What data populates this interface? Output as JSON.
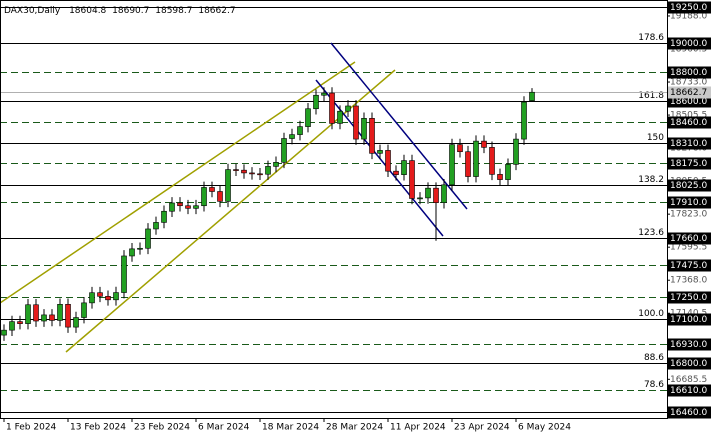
{
  "chart_data": {
    "type": "candlestick",
    "title": "DAX30,Daily",
    "up_color": "#22a022",
    "down_color": "#e41b1b",
    "categories": [
      "1 Feb 2024",
      null,
      null,
      null,
      null,
      null,
      null,
      null,
      "13 Feb 2024",
      null,
      null,
      null,
      null,
      null,
      null,
      null,
      "23 Feb 2024",
      null,
      null,
      null,
      null,
      null,
      null,
      null,
      "6 Mar 2024",
      null,
      null,
      null,
      null,
      null,
      null,
      null,
      "18 Mar 2024",
      null,
      null,
      null,
      null,
      null,
      null,
      null,
      "28 Mar 2024",
      null,
      null,
      null,
      null,
      null,
      null,
      null,
      "11 Apr 2024",
      null,
      null,
      null,
      null,
      null,
      null,
      null,
      "23 Apr 2024",
      null,
      null,
      null,
      null,
      null,
      null,
      null,
      "6 May 2024",
      null,
      null
    ],
    "open": [
      16990,
      17024,
      17083,
      17069,
      17199,
      17087,
      17129,
      17091,
      17202,
      17045,
      17111,
      17212,
      17282,
      17257,
      17233,
      17283,
      17535,
      17584,
      17588,
      17721,
      17766,
      17843,
      17900,
      17881,
      17863,
      17881,
      18007,
      17979,
      17911,
      18130,
      18126,
      18107,
      18101,
      18098,
      18152,
      18180,
      18344,
      18371,
      18426,
      18549,
      18642,
      18657,
      18448,
      18532,
      18568,
      18340,
      18483,
      18242,
      18262,
      18119,
      18095,
      18192,
      17931,
      17935,
      18002,
      17902,
      18025,
      18302,
      18253,
      18082,
      18326,
      18283,
      18097,
      18061,
      18166,
      18340,
      18604.8
    ],
    "high": [
      17064,
      17123,
      17123,
      17239,
      17239,
      17169,
      17169,
      17242,
      17242,
      17151,
      17252,
      17322,
      17322,
      17297,
      17323,
      17575,
      17624,
      17628,
      17761,
      17806,
      17883,
      17940,
      17940,
      17921,
      17921,
      18047,
      18047,
      18019,
      18170,
      18170,
      18166,
      18147,
      18141,
      18192,
      18220,
      18384,
      18411,
      18466,
      18589,
      18682,
      18697,
      18697,
      18572,
      18608,
      18608,
      18523,
      18523,
      18302,
      18302,
      18159,
      18232,
      18232,
      17975,
      18042,
      18042,
      18065,
      18342,
      18342,
      18293,
      18366,
      18366,
      18323,
      18137,
      18206,
      18380,
      18635,
      18690.7
    ],
    "low": [
      16950,
      16984,
      17029,
      17029,
      17047,
      17047,
      17051,
      17051,
      17005,
      17005,
      17071,
      17172,
      17217,
      17193,
      17193,
      17243,
      17495,
      17544,
      17548,
      17681,
      17726,
      17803,
      17841,
      17823,
      17823,
      17841,
      17939,
      17871,
      17871,
      18086,
      18067,
      18061,
      18058,
      18058,
      18112,
      18140,
      18304,
      18331,
      18386,
      18509,
      18602,
      18408,
      18408,
      18492,
      18300,
      18300,
      18202,
      18202,
      18079,
      18055,
      18055,
      17891,
      17891,
      17895,
      17640,
      17862,
      17985,
      18213,
      18042,
      18042,
      18243,
      18057,
      18021,
      18021,
      18126,
      18300,
      18598.7
    ],
    "close": [
      17024,
      17083,
      17069,
      17199,
      17087,
      17129,
      17091,
      17202,
      17045,
      17111,
      17212,
      17282,
      17257,
      17233,
      17283,
      17535,
      17584,
      17588,
      17721,
      17766,
      17843,
      17900,
      17881,
      17863,
      17881,
      18007,
      17979,
      17911,
      18130,
      18126,
      18107,
      18101,
      18098,
      18152,
      18180,
      18344,
      18371,
      18426,
      18549,
      18642,
      18657,
      18448,
      18532,
      18568,
      18340,
      18483,
      18242,
      18262,
      18119,
      18095,
      18192,
      17931,
      17935,
      18002,
      17902,
      18025,
      18302,
      18253,
      18082,
      18326,
      18283,
      18097,
      18061,
      18166,
      18340,
      18595,
      18662.7
    ],
    "ylim": [
      16419,
      19298
    ],
    "yticks": [
      {
        "value": 19188,
        "label": "19188.0"
      },
      {
        "value": 18960.5,
        "label": "18960.5"
      },
      {
        "value": 18733,
        "label": "18733.0"
      },
      {
        "value": 18505.5,
        "label": "18505.5"
      },
      {
        "value": 18278,
        "label": "18278.0"
      },
      {
        "value": 18050.5,
        "label": "18050.5"
      },
      {
        "value": 17823,
        "label": "17823.0"
      },
      {
        "value": 17595.5,
        "label": "17595.5"
      },
      {
        "value": 17368,
        "label": "17368.0"
      },
      {
        "value": 17140.5,
        "label": "17140.5"
      },
      {
        "value": 16913,
        "label": "16913.0"
      },
      {
        "value": 16685.5,
        "label": "16685.5"
      }
    ],
    "levels": [
      {
        "value": 19250,
        "label": "19250.0",
        "style": "solid"
      },
      {
        "value": 19000,
        "label": "19000.0",
        "style": "solid",
        "fib": "178.6"
      },
      {
        "value": 18800,
        "label": "18800.0",
        "style": "dashed"
      },
      {
        "value": 18600,
        "label": "18600.0",
        "style": "solid",
        "fib": "161.8"
      },
      {
        "value": 18460,
        "label": "18460.0",
        "style": "dashed"
      },
      {
        "value": 18310,
        "label": "18310.0",
        "style": "solid",
        "fib": "150"
      },
      {
        "value": 18175,
        "label": "18175.0",
        "style": "dashed"
      },
      {
        "value": 18025,
        "label": "18025.0",
        "style": "solid",
        "fib": "138.2"
      },
      {
        "value": 17910,
        "label": "17910.0",
        "style": "dashed"
      },
      {
        "value": 17660,
        "label": "17660.0",
        "style": "solid",
        "fib": "123.6"
      },
      {
        "value": 17475,
        "label": "17475.0",
        "style": "dashed"
      },
      {
        "value": 17250,
        "label": "17250.0",
        "style": "dashed"
      },
      {
        "value": 17100,
        "label": "17100.0",
        "style": "solid",
        "fib": "100.0"
      },
      {
        "value": 16930,
        "label": "16930.0",
        "style": "dashed"
      },
      {
        "value": 16800,
        "label": "16800.0",
        "style": "solid",
        "fib": "88.6"
      },
      {
        "value": 16610,
        "label": "16610.0",
        "style": "dashed",
        "fib": "78.6"
      },
      {
        "value": 16460,
        "label": "16460.0",
        "style": "solid"
      }
    ]
  }
}
